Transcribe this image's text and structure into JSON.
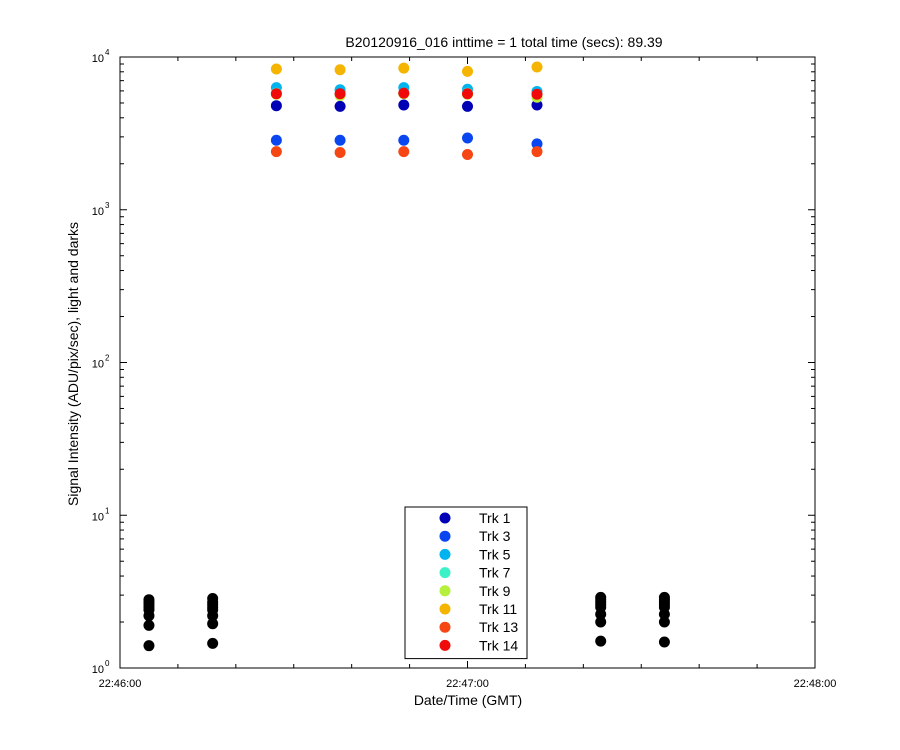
{
  "chart_data": {
    "type": "scatter",
    "title": "B20120916_016 inttime = 1 total time (secs): 89.39",
    "xlabel": "Date/Time (GMT)",
    "ylabel": "Signal Intensity (ADU/pix/sec), light and darks",
    "y_scale": "log",
    "x_range": [
      "22:46:00",
      "22:48:00"
    ],
    "ylim": [
      1,
      10000
    ],
    "x_ticks": [
      "22:46:00",
      "22:47:00",
      "22:48:00"
    ],
    "y_ticks": [
      {
        "base": "10",
        "exp": "0"
      },
      {
        "base": "10",
        "exp": "1"
      },
      {
        "base": "10",
        "exp": "2"
      },
      {
        "base": "10",
        "exp": "3"
      },
      {
        "base": "10",
        "exp": "4"
      }
    ],
    "grid": false,
    "legend_position": "bottom-center",
    "series": [
      {
        "name": "Trk 1",
        "color": "#0000b4",
        "points": [
          [
            "22:46:27",
            4800
          ],
          [
            "22:46:38",
            4750
          ],
          [
            "22:46:49",
            4850
          ],
          [
            "22:47:00",
            4750
          ],
          [
            "22:47:12",
            4850
          ]
        ]
      },
      {
        "name": "Trk 3",
        "color": "#0a46f0",
        "points": [
          [
            "22:46:27",
            2850
          ],
          [
            "22:46:38",
            2850
          ],
          [
            "22:46:49",
            2850
          ],
          [
            "22:47:00",
            2950
          ],
          [
            "22:47:12",
            2700
          ]
        ]
      },
      {
        "name": "Trk 5",
        "color": "#00b4f0",
        "points": [
          [
            "22:46:27",
            6300
          ],
          [
            "22:46:38",
            6100
          ],
          [
            "22:46:49",
            6300
          ],
          [
            "22:47:00",
            6150
          ],
          [
            "22:47:12",
            5950
          ]
        ]
      },
      {
        "name": "Trk 7",
        "color": "#3cf0c8",
        "points": [
          [
            "22:46:27",
            5800
          ],
          [
            "22:46:38",
            5700
          ],
          [
            "22:46:49",
            5800
          ],
          [
            "22:47:00",
            5800
          ],
          [
            "22:47:12",
            5700
          ]
        ]
      },
      {
        "name": "Trk 9",
        "color": "#b4f03c",
        "points": [
          [
            "22:46:27",
            5700
          ],
          [
            "22:46:38",
            5600
          ],
          [
            "22:46:49",
            5750
          ],
          [
            "22:47:00",
            5700
          ],
          [
            "22:47:12",
            5450
          ]
        ]
      },
      {
        "name": "Trk 11",
        "color": "#f5b400",
        "points": [
          [
            "22:46:27",
            8350
          ],
          [
            "22:46:38",
            8250
          ],
          [
            "22:46:49",
            8450
          ],
          [
            "22:47:00",
            8050
          ],
          [
            "22:47:12",
            8600
          ]
        ]
      },
      {
        "name": "Trk 13",
        "color": "#f54614",
        "points": [
          [
            "22:46:27",
            2400
          ],
          [
            "22:46:38",
            2370
          ],
          [
            "22:46:49",
            2400
          ],
          [
            "22:47:00",
            2300
          ],
          [
            "22:47:12",
            2400
          ]
        ]
      },
      {
        "name": "Trk 14",
        "color": "#f00a0a",
        "points": [
          [
            "22:46:27",
            5750
          ],
          [
            "22:46:38",
            5750
          ],
          [
            "22:46:49",
            5800
          ],
          [
            "22:47:00",
            5750
          ],
          [
            "22:47:12",
            5700
          ]
        ]
      }
    ],
    "dark_series": {
      "color": "#000000",
      "points": [
        [
          "22:46:05",
          2.8
        ],
        [
          "22:46:05",
          2.7
        ],
        [
          "22:46:05",
          2.6
        ],
        [
          "22:46:05",
          2.5
        ],
        [
          "22:46:05",
          2.4
        ],
        [
          "22:46:05",
          2.2
        ],
        [
          "22:46:05",
          1.9
        ],
        [
          "22:46:05",
          1.4
        ],
        [
          "22:46:16",
          2.85
        ],
        [
          "22:46:16",
          2.7
        ],
        [
          "22:46:16",
          2.6
        ],
        [
          "22:46:16",
          2.5
        ],
        [
          "22:46:16",
          2.4
        ],
        [
          "22:46:16",
          2.2
        ],
        [
          "22:46:16",
          1.95
        ],
        [
          "22:46:16",
          1.45
        ],
        [
          "22:47:23",
          2.9
        ],
        [
          "22:47:23",
          2.8
        ],
        [
          "22:47:23",
          2.7
        ],
        [
          "22:47:23",
          2.6
        ],
        [
          "22:47:23",
          2.5
        ],
        [
          "22:47:23",
          2.25
        ],
        [
          "22:47:23",
          2.0
        ],
        [
          "22:47:23",
          1.5
        ],
        [
          "22:47:34",
          2.9
        ],
        [
          "22:47:34",
          2.8
        ],
        [
          "22:47:34",
          2.7
        ],
        [
          "22:47:34",
          2.6
        ],
        [
          "22:47:34",
          2.5
        ],
        [
          "22:47:34",
          2.25
        ],
        [
          "22:47:34",
          2.0
        ],
        [
          "22:47:34",
          1.48
        ]
      ]
    }
  }
}
